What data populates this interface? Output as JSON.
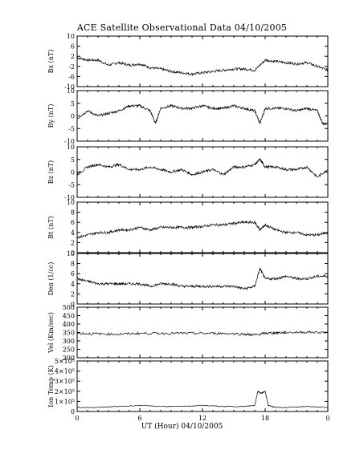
{
  "chart_data": {
    "type": "line",
    "title": "ACE Satellite Observational Data   04/10/2005",
    "xlabel": "UT (Hour)   04/10/2005",
    "x_ticks": [
      "0",
      "6",
      "12",
      "18",
      "0"
    ],
    "xlim": [
      0,
      24
    ],
    "grid": false,
    "panels": [
      {
        "ylabel": "Bx (nT)",
        "ylim": [
          -10,
          10
        ],
        "yticks": [
          "10",
          "6",
          "2",
          "-2",
          "-6",
          "-10"
        ],
        "ytick_values": [
          10,
          6,
          2,
          -2,
          -6,
          -10
        ],
        "series": [
          {
            "x": [
              0,
              1,
              2,
              3,
              4,
              5,
              6,
              7,
              8,
              9,
              10,
              11,
              12,
              13,
              14,
              15,
              16,
              17,
              18,
              19,
              20,
              21,
              22,
              23,
              24
            ],
            "y": [
              1.5,
              0.5,
              0.5,
              -1.5,
              -0.5,
              -1.5,
              -1,
              -2.5,
              -3,
              -4,
              -4.5,
              -5,
              -4.5,
              -4,
              -3.5,
              -3,
              -3,
              -3.5,
              0.5,
              0,
              -0.5,
              -1,
              -0.5,
              -2,
              -3.5
            ]
          }
        ]
      },
      {
        "ylabel": "By (nT)",
        "ylim": [
          -10,
          10
        ],
        "yticks": [
          "10",
          "5",
          "0",
          "-5",
          "-10"
        ],
        "ytick_values": [
          10,
          5,
          0,
          -5,
          -10
        ],
        "series": [
          {
            "x": [
              0,
              1,
              2,
              3,
              4,
              5,
              6,
              7,
              7.5,
              8,
              9,
              10,
              11,
              12,
              13,
              14,
              15,
              16,
              17,
              17.5,
              18,
              19,
              20,
              21,
              22,
              23,
              23.5,
              24
            ],
            "y": [
              -1,
              2,
              0,
              1,
              2,
              4,
              4,
              2,
              -3,
              3,
              4,
              3,
              3,
              4,
              3,
              3,
              4,
              3,
              2,
              -3,
              3,
              3,
              3,
              2,
              3,
              2,
              -3,
              -3
            ]
          }
        ]
      },
      {
        "ylabel": "Bz (nT)",
        "ylim": [
          -10,
          10
        ],
        "yticks": [
          "10",
          "5",
          "0",
          "-5",
          "-10"
        ],
        "ytick_values": [
          10,
          5,
          0,
          -5,
          -10
        ],
        "series": [
          {
            "x": [
              0,
              1,
              2,
              3,
              4,
              5,
              6,
              7,
              8,
              9,
              10,
              11,
              12,
              13,
              14,
              15,
              16,
              17,
              17.5,
              18,
              19,
              20,
              21,
              22,
              23,
              24
            ],
            "y": [
              -1,
              2,
              3,
              2,
              3,
              1,
              1,
              2,
              1,
              0,
              1,
              -1,
              0,
              1,
              -1,
              2,
              2,
              3,
              5,
              2,
              2,
              1,
              1,
              2,
              -2,
              1
            ]
          }
        ]
      },
      {
        "ylabel": "Bt (nT)",
        "ylim": [
          0,
          10
        ],
        "yticks": [
          "10",
          "8",
          "6",
          "4",
          "2",
          "0"
        ],
        "ytick_values": [
          10,
          8,
          6,
          4,
          2,
          0
        ],
        "series": [
          {
            "x": [
              0,
              1,
              2,
              3,
              4,
              5,
              6,
              7,
              8,
              9,
              10,
              11,
              12,
              13,
              14,
              15,
              16,
              17,
              17.5,
              18,
              19,
              20,
              21,
              22,
              23,
              24
            ],
            "y": [
              3,
              3.5,
              4,
              4,
              4.5,
              4.5,
              5,
              4.5,
              5,
              5,
              5,
              5,
              5.2,
              5.5,
              5.5,
              5.8,
              6,
              6,
              4.5,
              5.5,
              4.5,
              4,
              4,
              3.5,
              3.5,
              4
            ]
          }
        ]
      },
      {
        "ylabel": "Den (1/cc)",
        "ylim": [
          0,
          10
        ],
        "yticks": [
          "10",
          "8",
          "6",
          "4",
          "2",
          "0"
        ],
        "ytick_values": [
          10,
          8,
          6,
          4,
          2,
          0
        ],
        "series": [
          {
            "x": [
              0,
              1,
              2,
              3,
              4,
              5,
              6,
              7,
              8,
              9,
              10,
              11,
              12,
              13,
              14,
              15,
              16,
              17,
              17.5,
              18,
              19,
              20,
              21,
              22,
              23,
              24
            ],
            "y": [
              5,
              4.5,
              4,
              4,
              4,
              4,
              4,
              3.5,
              4,
              4,
              3.5,
              3.5,
              3.5,
              3.5,
              3.5,
              3.5,
              3,
              3.5,
              7,
              5,
              5,
              5.5,
              5,
              5,
              5.5,
              5.5
            ]
          }
        ]
      },
      {
        "ylabel": "Vel (Km/sec)",
        "ylim": [
          200,
          500
        ],
        "yticks": [
          "500",
          "450",
          "400",
          "350",
          "300",
          "250",
          "200"
        ],
        "ytick_values": [
          500,
          450,
          400,
          350,
          300,
          250,
          200
        ],
        "series": [
          {
            "x": [
              0,
              2,
              4,
              6,
              8,
              10,
              12,
              14,
              16,
              17,
              18,
              19,
              20,
              22,
              24
            ],
            "y": [
              345,
              342,
              340,
              345,
              345,
              345,
              345,
              345,
              340,
              335,
              345,
              348,
              350,
              352,
              350
            ]
          }
        ]
      },
      {
        "ylabel": "Ion Temp (K)",
        "ylim": [
          0,
          500000
        ],
        "yticks": [
          "5×10⁵",
          "4×10⁵",
          "3×10⁵",
          "2×10⁵",
          "1×10⁵",
          "0"
        ],
        "ytick_values": [
          500000,
          400000,
          300000,
          200000,
          100000,
          0
        ],
        "series": [
          {
            "x": [
              0,
              2,
              4,
              6,
              8,
              10,
              12,
              14,
              16,
              17,
              17.3,
              17.6,
              18,
              18.3,
              19,
              20,
              22,
              24
            ],
            "y": [
              40000,
              40000,
              50000,
              60000,
              50000,
              50000,
              60000,
              50000,
              50000,
              60000,
              200000,
              180000,
              200000,
              60000,
              40000,
              40000,
              50000,
              40000
            ]
          }
        ]
      }
    ]
  }
}
